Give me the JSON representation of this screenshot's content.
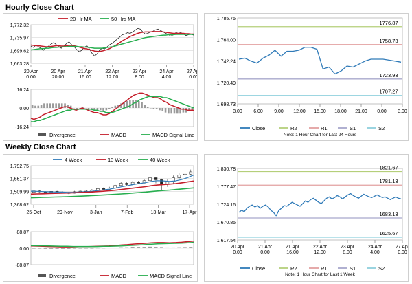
{
  "sections": {
    "hourly": "Hourly Close Chart",
    "weekly": "Weekly Close Chart"
  },
  "colors": {
    "close": "#2f7ab8",
    "ma_short": "#c41e2a",
    "ma_long": "#27ae4f",
    "macd": "#c41e2a",
    "signal": "#27ae4f",
    "divergence": "#9a9a9a",
    "r2": "#b5cf7a",
    "r1": "#e2a0a0",
    "s1": "#a8a8cc",
    "s2": "#8fd0dd",
    "grid": "#d8d8d8",
    "up_candle": "#ffffff",
    "down_candle": "#222222"
  },
  "chart_data": [
    {
      "id": "hourly_ma",
      "type": "line",
      "legend": [
        "20 Hr MA",
        "50 Hrs MA"
      ],
      "yticks": [
        "1,772.32",
        "1,735.97",
        "1,699.62",
        "1,663.28"
      ],
      "ylim": [
        1663.28,
        1772.32
      ],
      "xticks": [
        [
          "20 Apr",
          "0.00"
        ],
        [
          "20 Apr",
          "20.00"
        ],
        [
          "21 Apr",
          "16.00"
        ],
        [
          "22 Apr",
          "12.00"
        ],
        [
          "23 Apr",
          "8.00"
        ],
        [
          "24 Apr",
          "4.00"
        ],
        [
          "27 Apr",
          "0.00"
        ]
      ],
      "close": [
        1712,
        1708,
        1715,
        1710,
        1705,
        1700,
        1708,
        1712,
        1718,
        1722,
        1716,
        1710,
        1706,
        1712,
        1719,
        1724,
        1716,
        1710,
        1702,
        1696,
        1700,
        1708,
        1713,
        1704,
        1692,
        1684,
        1690,
        1700,
        1706,
        1704,
        1710,
        1716,
        1720,
        1726,
        1732,
        1738,
        1744,
        1746,
        1750,
        1748,
        1752,
        1757,
        1762,
        1760,
        1752,
        1746,
        1748,
        1752,
        1754,
        1758,
        1760,
        1756,
        1752,
        1748,
        1745,
        1740,
        1744,
        1750,
        1752,
        1750,
        1746,
        1742,
        1744,
        1746,
        1743
      ],
      "ma_short": [
        1715,
        1714,
        1713,
        1713,
        1712,
        1711,
        1710,
        1710,
        1711,
        1712,
        1713,
        1713,
        1712,
        1712,
        1713,
        1714,
        1714,
        1713,
        1711,
        1709,
        1707,
        1705,
        1704,
        1702,
        1700,
        1698,
        1697,
        1697,
        1698,
        1700,
        1702,
        1705,
        1709,
        1713,
        1717,
        1722,
        1727,
        1731,
        1735,
        1739,
        1742,
        1745,
        1748,
        1750,
        1751,
        1752,
        1752,
        1752,
        1753,
        1753,
        1753,
        1753,
        1752,
        1751,
        1750,
        1749,
        1748,
        1748,
        1748,
        1748,
        1748,
        1747,
        1747,
        1746,
        1746
      ],
      "ma_long": [
        1701,
        1702,
        1703,
        1704,
        1705,
        1705,
        1706,
        1706,
        1707,
        1708,
        1708,
        1709,
        1709,
        1710,
        1710,
        1711,
        1711,
        1711,
        1711,
        1710,
        1710,
        1709,
        1709,
        1708,
        1707,
        1706,
        1706,
        1706,
        1706,
        1707,
        1708,
        1709,
        1710,
        1712,
        1714,
        1716,
        1718,
        1720,
        1722,
        1724,
        1726,
        1728,
        1730,
        1732,
        1734,
        1736,
        1737,
        1738,
        1739,
        1740,
        1741,
        1742,
        1743,
        1743,
        1744,
        1744,
        1744,
        1745,
        1745,
        1745,
        1745,
        1745,
        1745,
        1745,
        1745
      ]
    },
    {
      "id": "hourly_macd",
      "type": "line",
      "legend": [
        "Divergence",
        "MACD",
        "MACD Signal Line"
      ],
      "yticks": [
        "16.24",
        "0.00",
        "-16.24"
      ],
      "ylim": [
        -16.24,
        16.24
      ],
      "macd": [
        -9,
        -10,
        -9,
        -8,
        -6,
        -5,
        -4,
        -3,
        -2,
        -1,
        0,
        1,
        1,
        0,
        -1,
        -2,
        -1,
        0,
        -1,
        -2,
        -3,
        -4,
        -4,
        -5,
        -6,
        -6,
        -5,
        -3,
        -1,
        1,
        3,
        5,
        7,
        9,
        11,
        12,
        13,
        13,
        12,
        11,
        10,
        9,
        9,
        8,
        6,
        5,
        3,
        2,
        1,
        0,
        -1,
        -1,
        -2,
        -2,
        -2
      ],
      "signal": [
        -12,
        -12,
        -11,
        -11,
        -10,
        -9,
        -8,
        -7,
        -6,
        -5,
        -4,
        -3,
        -2,
        -2,
        -1,
        -1,
        -1,
        -1,
        -1,
        -1,
        -1,
        -2,
        -2,
        -3,
        -3,
        -4,
        -4,
        -4,
        -3,
        -2,
        -1,
        0,
        1,
        2,
        4,
        5,
        7,
        8,
        9,
        10,
        10,
        10,
        10,
        10,
        9,
        9,
        8,
        7,
        6,
        5,
        4,
        3,
        2,
        1,
        0
      ],
      "divergence": [
        3,
        2,
        2,
        3,
        4,
        4,
        4,
        4,
        4,
        4,
        4,
        4,
        3,
        2,
        0,
        -1,
        0,
        1,
        0,
        -1,
        -2,
        -2,
        -2,
        -2,
        -3,
        -2,
        -1,
        1,
        2,
        3,
        4,
        5,
        6,
        7,
        7,
        7,
        6,
        5,
        3,
        1,
        0,
        -1,
        -1,
        -2,
        -3,
        -4,
        -5,
        -5,
        -5,
        -5,
        -5,
        -4,
        -4,
        -3,
        -2
      ]
    },
    {
      "id": "hourly_close",
      "type": "line",
      "legend": [
        "Close",
        "R2",
        "R1",
        "S1",
        "S2"
      ],
      "yticks": [
        "1,785.75",
        "1,764.00",
        "1,742.24",
        "1,720.49",
        "1,698.73"
      ],
      "ylim": [
        1698.73,
        1785.75
      ],
      "xticks": [
        "3.00",
        "6.00",
        "9.00",
        "12.00",
        "15.00",
        "18.00",
        "21.00",
        "0.00",
        "3.00"
      ],
      "levels": {
        "R2": 1776.87,
        "R1": 1758.73,
        "S1": 1723.93,
        "S2": 1707.27
      },
      "level_labels": [
        "1776.87",
        "1758.73",
        "1723.93",
        "1707.27"
      ],
      "close": [
        1744,
        1745,
        1742,
        1740,
        1745,
        1748,
        1753,
        1747,
        1752,
        1752,
        1753,
        1756,
        1756,
        1754,
        1734,
        1736,
        1729,
        1732,
        1737,
        1736,
        1739,
        1742,
        1744,
        1744,
        1744,
        1743,
        1742,
        1741
      ],
      "note": "Note: 1 Hour Chart for Last 24 Hours"
    },
    {
      "id": "weekly_ma",
      "type": "candlestick",
      "legend": [
        "4 Week",
        "13 Week",
        "40 Week"
      ],
      "yticks": [
        "1,792.75",
        "1,651.37",
        "1,509.99",
        "1,368.62"
      ],
      "ylim": [
        1368.62,
        1792.75
      ],
      "xticks": [
        "25-Oct",
        "29-Nov",
        "3-Jan",
        "7-Feb",
        "13-Mar",
        "17-Apr"
      ],
      "candles": [
        [
          1500,
          1515,
          1525,
          1490
        ],
        [
          1515,
          1505,
          1522,
          1498
        ],
        [
          1505,
          1498,
          1512,
          1485
        ],
        [
          1498,
          1510,
          1520,
          1492
        ],
        [
          1510,
          1502,
          1516,
          1495
        ],
        [
          1502,
          1495,
          1508,
          1488
        ],
        [
          1495,
          1490,
          1504,
          1480
        ],
        [
          1490,
          1505,
          1515,
          1486
        ],
        [
          1505,
          1512,
          1522,
          1498
        ],
        [
          1512,
          1508,
          1520,
          1500
        ],
        [
          1508,
          1525,
          1535,
          1502
        ],
        [
          1525,
          1540,
          1556,
          1518
        ],
        [
          1540,
          1532,
          1552,
          1524
        ],
        [
          1532,
          1545,
          1560,
          1526
        ],
        [
          1545,
          1575,
          1590,
          1538
        ],
        [
          1575,
          1600,
          1612,
          1566
        ],
        [
          1600,
          1585,
          1610,
          1570
        ],
        [
          1585,
          1610,
          1625,
          1578
        ],
        [
          1610,
          1602,
          1626,
          1590
        ],
        [
          1602,
          1628,
          1645,
          1594
        ],
        [
          1628,
          1660,
          1680,
          1618
        ],
        [
          1660,
          1638,
          1672,
          1600
        ],
        [
          1638,
          1590,
          1650,
          1520
        ],
        [
          1590,
          1615,
          1640,
          1560
        ],
        [
          1615,
          1660,
          1685,
          1600
        ],
        [
          1660,
          1692,
          1710,
          1640
        ],
        [
          1692,
          1700,
          1770,
          1660
        ],
        [
          1700,
          1725,
          1750,
          1690
        ]
      ],
      "ma4": [
        1512,
        1510,
        1507,
        1505,
        1503,
        1502,
        1500,
        1500,
        1503,
        1506,
        1510,
        1518,
        1526,
        1534,
        1545,
        1560,
        1572,
        1585,
        1596,
        1606,
        1620,
        1628,
        1625,
        1620,
        1625,
        1640,
        1662,
        1690
      ],
      "ma13": [
        1480,
        1482,
        1484,
        1486,
        1488,
        1490,
        1492,
        1494,
        1497,
        1500,
        1503,
        1507,
        1511,
        1516,
        1522,
        1530,
        1538,
        1546,
        1554,
        1562,
        1572,
        1580,
        1585,
        1590,
        1596,
        1604,
        1614,
        1624
      ],
      "ma40": [
        1440,
        1442,
        1444,
        1446,
        1448,
        1450,
        1452,
        1454,
        1457,
        1460,
        1463,
        1466,
        1470,
        1474,
        1478,
        1482,
        1487,
        1492,
        1497,
        1502,
        1508,
        1514,
        1519,
        1524,
        1530,
        1536,
        1542,
        1548
      ]
    },
    {
      "id": "weekly_macd",
      "type": "line",
      "legend": [
        "Divergence",
        "MACD",
        "MACD Signal Line"
      ],
      "yticks": [
        "88.87",
        "0.00",
        "-88.87"
      ],
      "ylim": [
        -88.87,
        88.87
      ],
      "macd": [
        12,
        11,
        10,
        9,
        8,
        7,
        7,
        7,
        8,
        8,
        9,
        10,
        11,
        12,
        14,
        17,
        19,
        22,
        24,
        26,
        29,
        30,
        30,
        29,
        30,
        32,
        35,
        38
      ],
      "signal": [
        14,
        13,
        13,
        12,
        11,
        10,
        10,
        9,
        9,
        9,
        9,
        9,
        10,
        10,
        11,
        12,
        14,
        15,
        17,
        19,
        21,
        23,
        24,
        25,
        26,
        27,
        29,
        31
      ],
      "divergence": [
        -2,
        -2,
        -3,
        -3,
        -3,
        -3,
        -3,
        -2,
        -1,
        -1,
        0,
        1,
        1,
        2,
        3,
        5,
        5,
        7,
        7,
        7,
        8,
        7,
        6,
        4,
        4,
        5,
        6,
        7
      ]
    },
    {
      "id": "weekly_close",
      "type": "line",
      "legend": [
        "Close",
        "R2",
        "R1",
        "S1",
        "S2"
      ],
      "yticks": [
        "1,830.78",
        "1,777.47",
        "1,724.16",
        "1,670.85",
        "1,617.54"
      ],
      "ylim": [
        1617.54,
        1830.78
      ],
      "xticks": [
        [
          "20 Apr",
          "0.00"
        ],
        [
          "21 Apr",
          "0.00"
        ],
        [
          "21 Apr",
          "16.00"
        ],
        [
          "22 Apr",
          "12.00"
        ],
        [
          "23 Apr",
          "8.00"
        ],
        [
          "24 Apr",
          "4.00"
        ],
        [
          "27 Apr",
          "0.00"
        ]
      ],
      "levels": {
        "R2": 1821.67,
        "R1": 1781.13,
        "S1": 1683.13,
        "S2": 1625.67
      },
      "level_labels": [
        "1821.67",
        "1781.13",
        "1683.13",
        "1625.67"
      ],
      "close": [
        1700,
        1706,
        1702,
        1712,
        1718,
        1722,
        1716,
        1720,
        1712,
        1718,
        1722,
        1716,
        1706,
        1700,
        1690,
        1705,
        1712,
        1720,
        1718,
        1724,
        1730,
        1726,
        1722,
        1718,
        1726,
        1734,
        1730,
        1738,
        1742,
        1736,
        1730,
        1726,
        1734,
        1742,
        1746,
        1740,
        1744,
        1750,
        1746,
        1740,
        1746,
        1752,
        1756,
        1750,
        1746,
        1742,
        1748,
        1754,
        1750,
        1746,
        1744,
        1748,
        1752,
        1748,
        1744,
        1746,
        1742,
        1738,
        1742,
        1746,
        1742,
        1740
      ],
      "note": "Note: 1 Hour Chart for Last 1 Week"
    }
  ]
}
